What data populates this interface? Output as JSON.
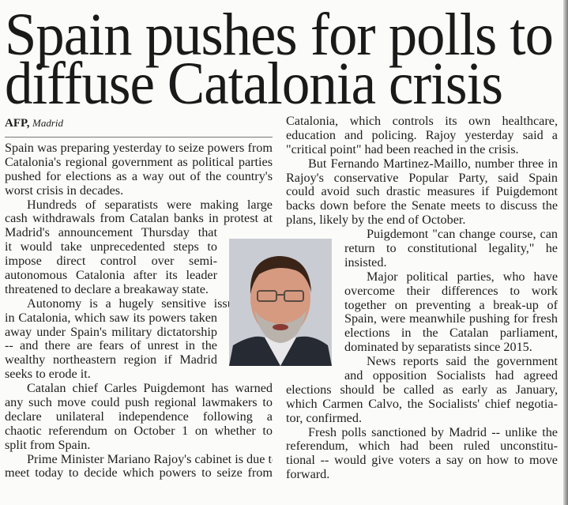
{
  "headline": {
    "line1": "Spain pushes for polls to",
    "line2": "diffuse Catalonia crisis"
  },
  "byline": {
    "agency": "AFP,",
    "place": "Madrid"
  },
  "left_column": [
    {
      "lines": [
        "Spain was preparing yesterday to seize powers from",
        "Catalonia's regional government as political parties",
        "pushed for elections as a way out of the country's",
        "worst crisis in decades."
      ],
      "narrow": []
    },
    {
      "lines": [
        "Hundreds of separatists were making large",
        "cash withdrawals from Catalan banks in protest at",
        "Madrid's announcement Thursday that",
        "it would take unprecedented steps to",
        "impose direct control over semi-",
        "autonomous Catalonia after its leader",
        "threatened to declare a breakaway state."
      ],
      "narrow": [
        2,
        3,
        4,
        5,
        6
      ]
    },
    {
      "lines": [
        "Autonomy is a hugely sensitive issue",
        "in Catalonia, which saw its powers taken",
        "away under Spain's military dictatorship",
        "-- and there are fears of unrest in the",
        "wealthy northeastern region if Madrid",
        "seeks to erode it."
      ],
      "narrow": [
        0,
        1,
        2,
        3,
        4
      ]
    },
    {
      "lines": [
        "Catalan chief Carles Puigdemont has warned",
        "any such move could push regional lawmakers to",
        "declare unilateral independence following a",
        "chaotic referendum on October 1 on whether to",
        "split from Spain."
      ],
      "narrow": []
    },
    {
      "lines": [
        "Prime Minister Mariano Rajoy's cabinet is due to",
        "meet today to decide which powers to seize from"
      ],
      "narrow": [],
      "continues": true
    }
  ],
  "right_column": [
    {
      "lines": [
        "Catalonia, which controls its own healthcare,",
        "education and policing. Rajoy yesterday said a",
        "\"critical point\" had been reached in the crisis."
      ],
      "narrow": [],
      "continued": true
    },
    {
      "lines": [
        "But Fernando Martinez-Maillo, number three in",
        "Rajoy's conservative Popular Party, said Spain",
        "could avoid such drastic measures if Puigdemont",
        "backs down before the Senate meets to discuss the",
        "plans, likely by the end of October."
      ],
      "narrow": []
    },
    {
      "lines": [
        "Puigdemont \"can change course, can",
        "return to constitutional legality,\" he",
        "insisted."
      ],
      "narrow": [
        0,
        1,
        2
      ]
    },
    {
      "lines": [
        "Major political parties, who have",
        "overcome their differences to work",
        "together on preventing a break-up of",
        "Spain, were meanwhile pushing for fresh",
        "elections in the Catalan parliament,",
        "dominated by separatists since 2015."
      ],
      "narrow": [
        0,
        1,
        2,
        3,
        4,
        5
      ]
    },
    {
      "lines": [
        "News reports said the government",
        "and opposition Socialists had agreed",
        "elections should be called as early as January,",
        "which Carmen Calvo, the Socialists' chief negotia-",
        "tor, confirmed."
      ],
      "narrow": [
        0,
        1
      ]
    },
    {
      "lines": [
        "Fresh polls sanctioned by Madrid -- unlike the",
        "referendum, which had been ruled unconstitu-",
        "tional -- would give voters a say on how to move",
        "forward."
      ],
      "narrow": []
    }
  ],
  "photo": {
    "subject": "portrait"
  }
}
